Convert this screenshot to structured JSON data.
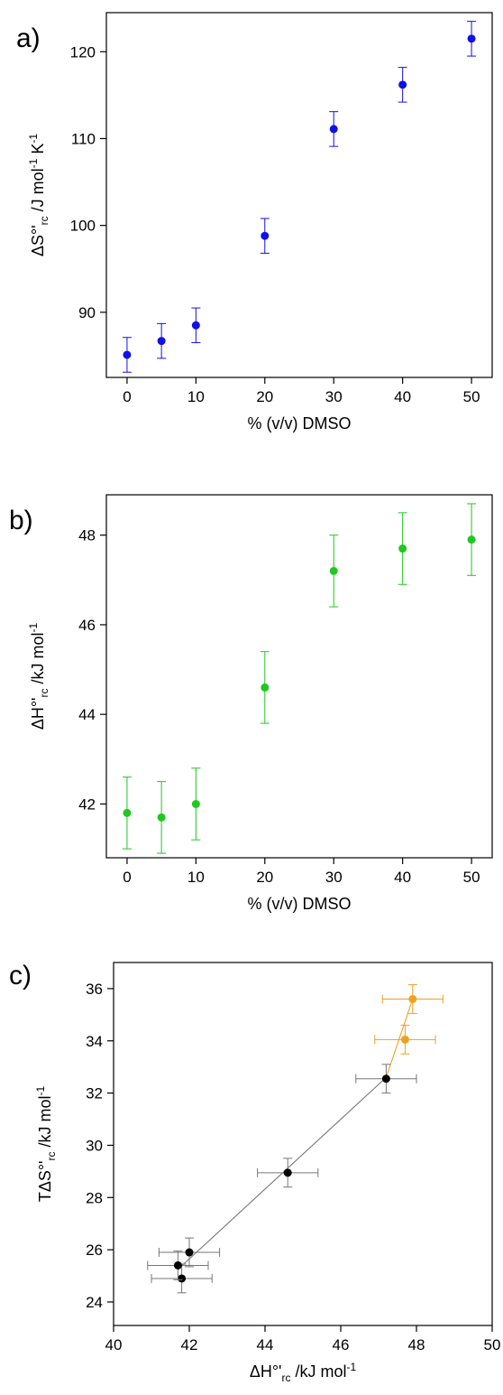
{
  "panels": [
    {
      "label": "a)"
    },
    {
      "label": "b)"
    },
    {
      "label": "c)"
    }
  ],
  "chart_data": [
    {
      "type": "scatter",
      "panel": "a)",
      "title": "",
      "xlabel": "% (v/v) DMSO",
      "ylabel": "ΔS°'rc /J mol-1 K-1",
      "xlim": [
        -3,
        53
      ],
      "ylim": [
        82.5,
        124.5
      ],
      "xticks": [
        "0",
        "10",
        "20",
        "30",
        "40",
        "50"
      ],
      "yticks": [
        "90",
        "100",
        "110",
        "120"
      ],
      "grid": false,
      "error_bars": "y",
      "series": [
        {
          "color": "#1010e8",
          "x": [
            0,
            5,
            10,
            20,
            30,
            40,
            50
          ],
          "y": [
            85.1,
            86.7,
            88.5,
            98.8,
            111.1,
            116.2,
            121.5
          ],
          "yerr": [
            2.0,
            2.0,
            2.0,
            2.0,
            2.0,
            2.0,
            2.0
          ]
        }
      ]
    },
    {
      "type": "scatter",
      "panel": "b)",
      "title": "",
      "xlabel": "% (v/v) DMSO",
      "ylabel": "ΔH°'rc /kJ mol-1",
      "xlim": [
        -3,
        53
      ],
      "ylim": [
        40.8,
        48.9
      ],
      "xticks": [
        "0",
        "10",
        "20",
        "30",
        "40",
        "50"
      ],
      "yticks": [
        "42",
        "44",
        "46",
        "48"
      ],
      "grid": false,
      "error_bars": "y",
      "series": [
        {
          "color": "#1ec81e",
          "x": [
            0,
            5,
            10,
            20,
            30,
            40,
            50
          ],
          "y": [
            41.8,
            41.7,
            42.0,
            44.6,
            47.2,
            47.7,
            47.9
          ],
          "yerr": [
            0.8,
            0.8,
            0.8,
            0.8,
            0.8,
            0.8,
            0.8
          ]
        }
      ]
    },
    {
      "type": "scatter",
      "panel": "c)",
      "title": "",
      "xlabel": "ΔH°'rc /kJ mol-1",
      "ylabel": "TΔS°'rc /kJ mol-1",
      "xlim": [
        40,
        50
      ],
      "ylim": [
        23.1,
        37.0
      ],
      "xticks": [
        "40",
        "42",
        "44",
        "46",
        "48",
        "50"
      ],
      "yticks": [
        "24",
        "26",
        "28",
        "30",
        "32",
        "34",
        "36"
      ],
      "grid": false,
      "error_bars": "xy",
      "series": [
        {
          "color": "#000000",
          "line_color": "#777777",
          "x": [
            41.8,
            41.7,
            42.0,
            44.6,
            47.2
          ],
          "y": [
            24.9,
            25.4,
            25.9,
            28.95,
            32.55
          ],
          "xerr": [
            0.8,
            0.8,
            0.8,
            0.8,
            0.8
          ],
          "yerr": [
            0.55,
            0.55,
            0.55,
            0.55,
            0.55
          ],
          "fit_line": {
            "x": [
              41.7,
              47.2
            ],
            "y": [
              25.25,
              32.6
            ]
          }
        },
        {
          "color": "#f0a020",
          "line_color": "#f0a020",
          "x": [
            47.7,
            47.9
          ],
          "y": [
            34.05,
            35.6
          ],
          "xerr": [
            0.8,
            0.8
          ],
          "yerr": [
            0.55,
            0.55
          ],
          "fit_line": {
            "x": [
              47.2,
              47.9
            ],
            "y": [
              32.6,
              35.6
            ]
          }
        }
      ]
    }
  ]
}
